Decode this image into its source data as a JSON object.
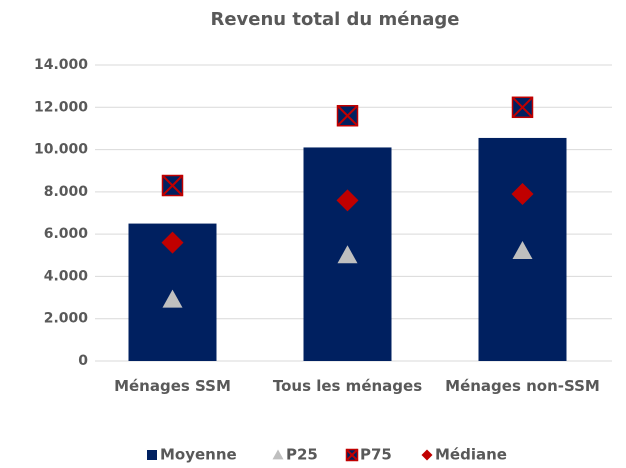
{
  "chart_data": {
    "type": "bar",
    "title": "Revenu total du ménage",
    "categories": [
      "Ménages SSM",
      "Tous les ménages",
      "Ménages non-SSM"
    ],
    "series": [
      {
        "name": "Moyenne",
        "marker": "bar",
        "color": "#002060",
        "values": [
          6500,
          10100,
          10550
        ]
      },
      {
        "name": "P25",
        "marker": "triangle",
        "color": "#bfbfbf",
        "values": [
          2900,
          5000,
          5200
        ]
      },
      {
        "name": "P75",
        "marker": "square-x",
        "color": "#002060",
        "cross_color": "#c00000",
        "values": [
          8300,
          11600,
          12000
        ]
      },
      {
        "name": "Médiane",
        "marker": "diamond",
        "color": "#c00000",
        "values": [
          5600,
          7600,
          7900
        ]
      }
    ],
    "ylim": [
      0,
      14000
    ],
    "yticks": [
      0,
      {
        "value": 2000,
        "label": "2.000"
      },
      {
        "value": 4000,
        "label": "4.000"
      },
      {
        "value": 6000,
        "label": "6.000"
      },
      {
        "value": 8000,
        "label": "8.000"
      },
      {
        "value": 10000,
        "label": "10.000"
      },
      {
        "value": 12000,
        "label": "12.000"
      },
      {
        "value": 14000,
        "label": "14.000"
      }
    ],
    "grid": true,
    "legend": "bottom"
  }
}
